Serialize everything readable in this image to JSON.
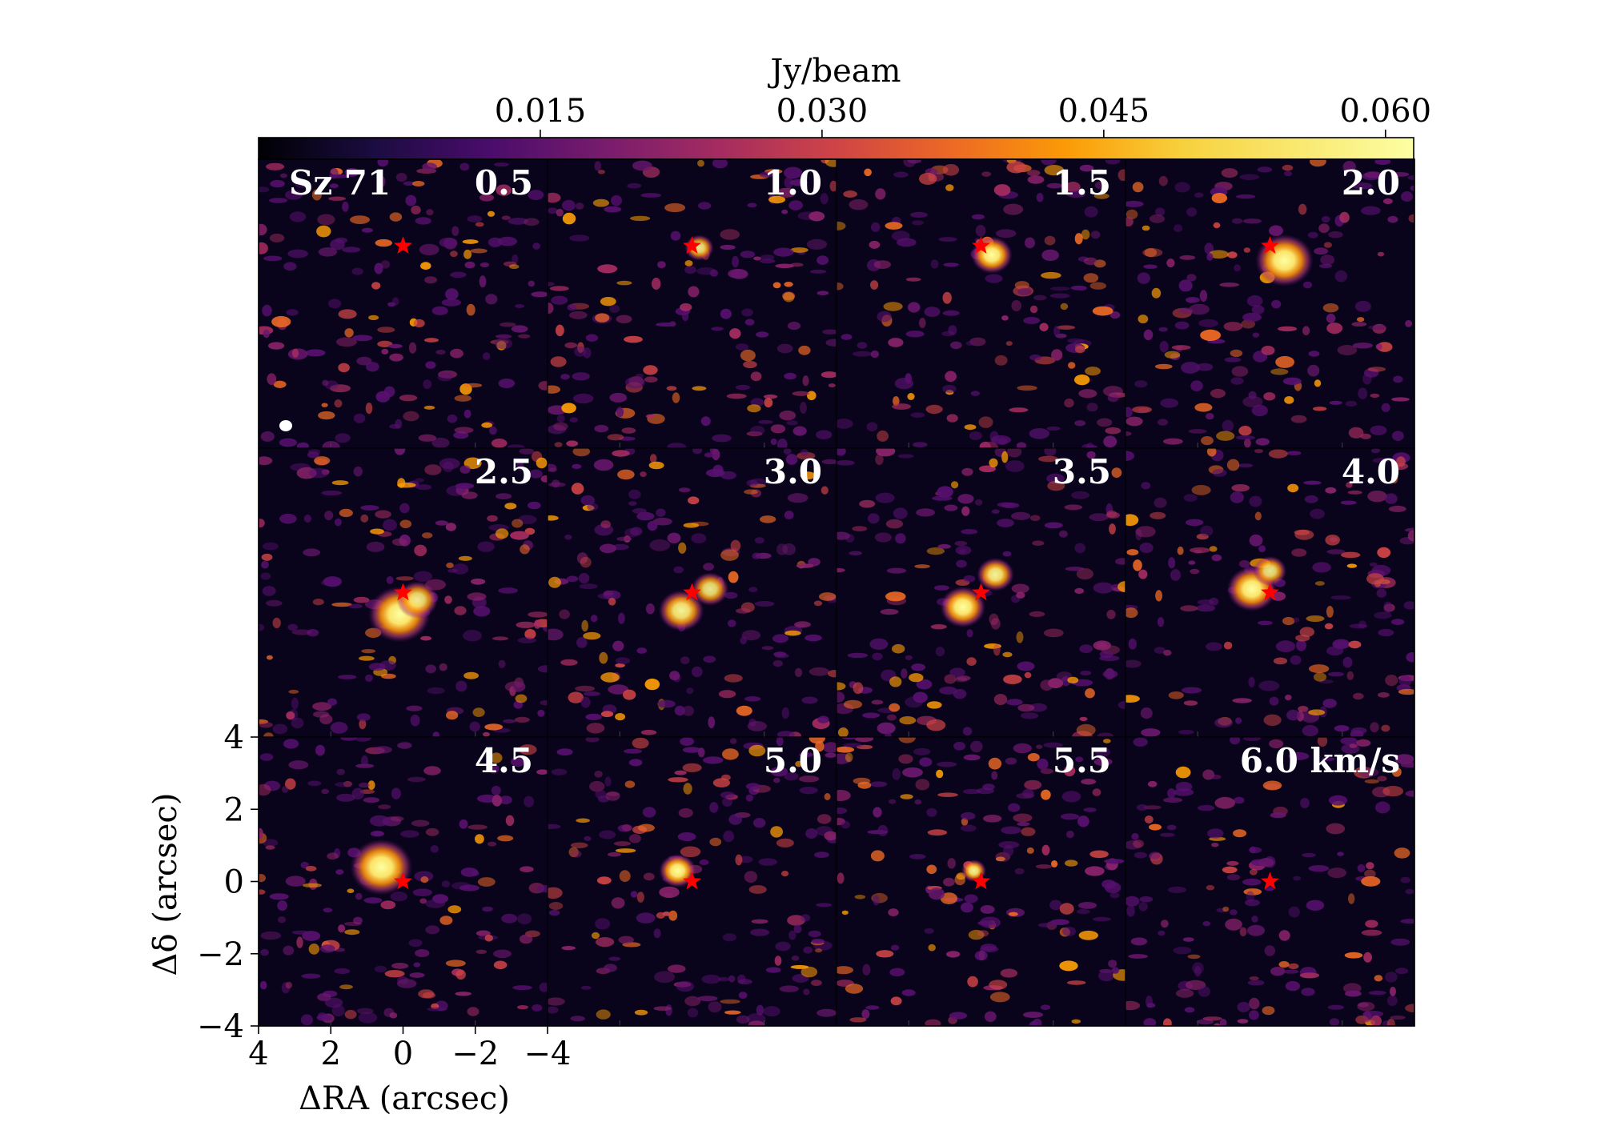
{
  "chart_data": {
    "type": "heatmap",
    "source_name": "Sz 71",
    "colorbar": {
      "label": "Jy/beam",
      "colormap": "inferno",
      "range": [
        0.0,
        0.0615
      ],
      "ticks": [
        "0.015",
        "0.030",
        "0.045",
        "0.060"
      ],
      "tick_values": [
        0.015,
        0.03,
        0.045,
        0.06
      ]
    },
    "xlabel": "ΔRA (arcsec)",
    "ylabel": "Δδ (arcsec)",
    "xlim": [
      4,
      -4
    ],
    "ylim": [
      -4,
      4
    ],
    "xticks": [
      "4",
      "2",
      "0",
      "−2",
      "−4"
    ],
    "xtick_values": [
      4,
      2,
      0,
      -2,
      -4
    ],
    "yticks": [
      "4",
      "2",
      "0",
      "−2",
      "−4"
    ],
    "ytick_values": [
      4,
      2,
      0,
      -2,
      -4
    ],
    "channels": [
      {
        "velocity": "0.5",
        "star": [
          0.0,
          1.6
        ],
        "blobs": []
      },
      {
        "velocity": "1.0",
        "star": [
          0.0,
          1.6
        ],
        "blobs": [
          [
            -0.2,
            1.55,
            0.35,
            0.9
          ]
        ]
      },
      {
        "velocity": "1.5",
        "star": [
          0.0,
          1.6
        ],
        "blobs": [
          [
            -0.3,
            1.35,
            0.5,
            1.0
          ]
        ]
      },
      {
        "velocity": "2.0",
        "star": [
          0.0,
          1.6
        ],
        "blobs": [
          [
            -0.4,
            1.2,
            0.7,
            1.0
          ]
        ]
      },
      {
        "velocity": "2.5",
        "star": [
          0.0,
          0.0
        ],
        "blobs": [
          [
            0.1,
            -0.6,
            0.75,
            1.0
          ],
          [
            -0.4,
            -0.2,
            0.5,
            0.9
          ]
        ]
      },
      {
        "velocity": "3.0",
        "star": [
          0.0,
          0.0
        ],
        "blobs": [
          [
            0.3,
            -0.5,
            0.55,
            0.95
          ],
          [
            -0.5,
            0.1,
            0.45,
            0.9
          ]
        ]
      },
      {
        "velocity": "3.5",
        "star": [
          0.0,
          0.0
        ],
        "blobs": [
          [
            0.5,
            -0.4,
            0.55,
            1.0
          ],
          [
            -0.4,
            0.5,
            0.45,
            0.95
          ]
        ]
      },
      {
        "velocity": "4.0",
        "star": [
          0.0,
          0.0
        ],
        "blobs": [
          [
            0.5,
            0.1,
            0.6,
            1.0
          ],
          [
            0.0,
            0.6,
            0.4,
            0.9
          ]
        ]
      },
      {
        "velocity": "4.5",
        "star": [
          0.0,
          0.0
        ],
        "blobs": [
          [
            0.6,
            0.4,
            0.75,
            1.0
          ]
        ]
      },
      {
        "velocity": "5.0",
        "star": [
          0.0,
          0.0
        ],
        "blobs": [
          [
            0.4,
            0.3,
            0.45,
            1.0
          ]
        ]
      },
      {
        "velocity": "5.5",
        "star": [
          0.0,
          0.0
        ],
        "blobs": [
          [
            0.2,
            0.3,
            0.3,
            0.95
          ]
        ]
      },
      {
        "velocity": "6.0 km/s",
        "star": [
          0.0,
          0.0
        ],
        "blobs": []
      }
    ],
    "beam": "white ellipse, lower-left of first panel",
    "star_color": "#ff0000"
  }
}
